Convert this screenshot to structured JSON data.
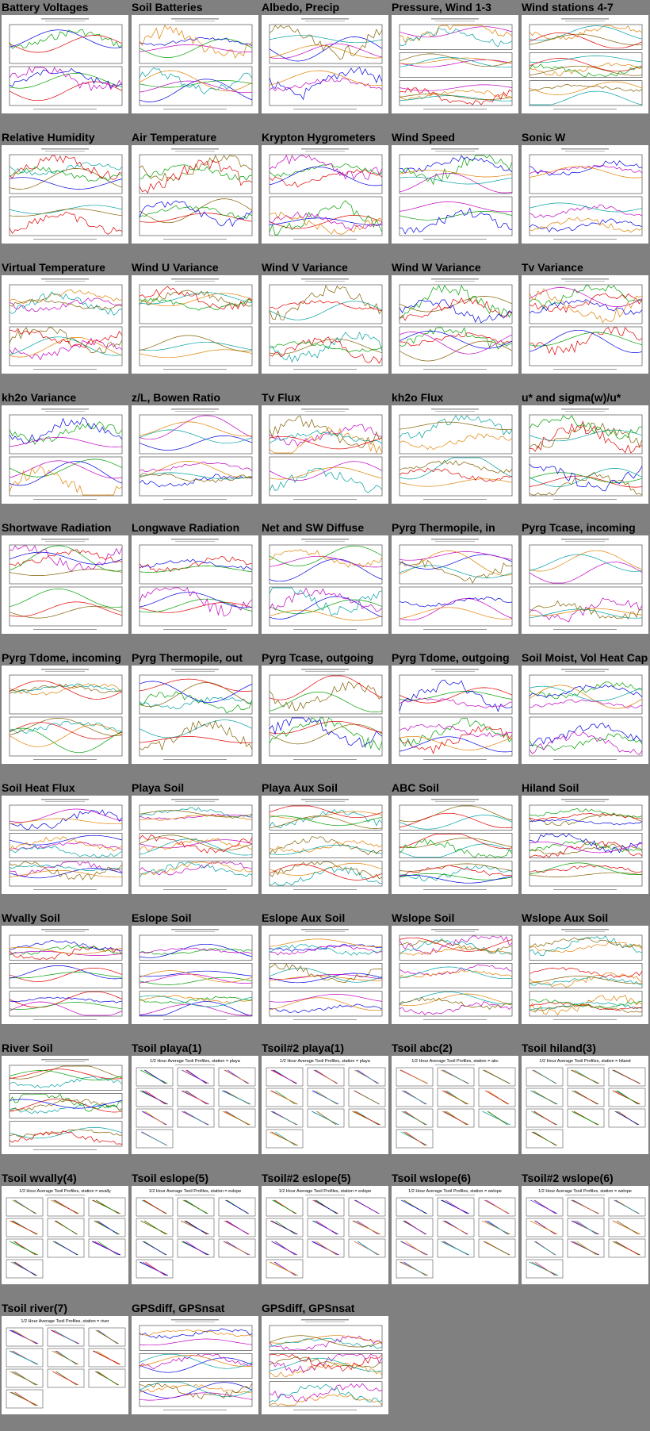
{
  "page": {
    "background": "#808080"
  },
  "plots": [
    {
      "title": "Battery Voltages",
      "kind": "ts",
      "panels": 2
    },
    {
      "title": "Soil Batteries",
      "kind": "ts",
      "panels": 2
    },
    {
      "title": "Albedo, Precip",
      "kind": "ts",
      "panels": 2
    },
    {
      "title": "Pressure, Wind 1-3",
      "kind": "ts",
      "panels": 3
    },
    {
      "title": "Wind stations 4-7",
      "kind": "ts",
      "panels": 3
    },
    {
      "title": "Relative Humidity",
      "kind": "ts",
      "panels": 2
    },
    {
      "title": "Air Temperature",
      "kind": "ts",
      "panels": 2
    },
    {
      "title": "Krypton Hygrometers",
      "kind": "ts",
      "panels": 2
    },
    {
      "title": "Wind Speed",
      "kind": "ts",
      "panels": 2
    },
    {
      "title": "Sonic W",
      "kind": "ts",
      "panels": 2
    },
    {
      "title": "Virtual Temperature",
      "kind": "ts",
      "panels": 2
    },
    {
      "title": "Wind U Variance",
      "kind": "ts",
      "panels": 2
    },
    {
      "title": "Wind V Variance",
      "kind": "ts",
      "panels": 2
    },
    {
      "title": "Wind W Variance",
      "kind": "ts",
      "panels": 2
    },
    {
      "title": "Tv Variance",
      "kind": "ts",
      "panels": 2
    },
    {
      "title": "kh2o Variance",
      "kind": "ts",
      "panels": 2
    },
    {
      "title": "z/L, Bowen Ratio",
      "kind": "ts",
      "panels": 2
    },
    {
      "title": "Tv Flux",
      "kind": "ts",
      "panels": 2
    },
    {
      "title": "kh2o Flux",
      "kind": "ts",
      "panels": 2
    },
    {
      "title": "u* and sigma(w)/u*",
      "kind": "ts",
      "panels": 2
    },
    {
      "title": "Shortwave Radiation",
      "kind": "ts",
      "panels": 2
    },
    {
      "title": "Longwave Radiation",
      "kind": "ts",
      "panels": 2
    },
    {
      "title": "Net and SW Diffuse",
      "kind": "ts",
      "panels": 2
    },
    {
      "title": "Pyrg Thermopile, in",
      "kind": "ts",
      "panels": 2
    },
    {
      "title": "Pyrg Tcase, incoming",
      "kind": "ts",
      "panels": 2
    },
    {
      "title": "Pyrg Tdome, incoming",
      "kind": "ts",
      "panels": 2
    },
    {
      "title": "Pyrg Thermopile, out",
      "kind": "ts",
      "panels": 2
    },
    {
      "title": "Pyrg Tcase, outgoing",
      "kind": "ts",
      "panels": 2
    },
    {
      "title": "Pyrg Tdome, outgoing",
      "kind": "ts",
      "panels": 2
    },
    {
      "title": "Soil Moist, Vol Heat Cap",
      "kind": "ts",
      "panels": 2
    },
    {
      "title": "Soil Heat Flux",
      "kind": "ts",
      "panels": 3
    },
    {
      "title": "Playa Soil",
      "kind": "ts",
      "panels": 3
    },
    {
      "title": "Playa Aux Soil",
      "kind": "ts",
      "panels": 3
    },
    {
      "title": "ABC Soil",
      "kind": "ts",
      "panels": 3
    },
    {
      "title": "Hiland Soil",
      "kind": "ts",
      "panels": 3
    },
    {
      "title": "Wvally Soil",
      "kind": "ts",
      "panels": 3
    },
    {
      "title": "Eslope Soil",
      "kind": "ts",
      "panels": 3
    },
    {
      "title": "Eslope Aux Soil",
      "kind": "ts",
      "panels": 3
    },
    {
      "title": "Wslope Soil",
      "kind": "ts",
      "panels": 3
    },
    {
      "title": "Wslope Aux Soil",
      "kind": "ts",
      "panels": 3
    },
    {
      "title": "River Soil",
      "kind": "ts",
      "panels": 3
    },
    {
      "title": "Tsoil playa(1)",
      "kind": "prof",
      "heading": "1/2 Hour Average Tsoil Profiles, station = playa"
    },
    {
      "title": "Tsoil#2 playa(1)",
      "kind": "prof",
      "heading": "1/2 Hour Average Tsoil Profiles, station = playa"
    },
    {
      "title": "Tsoil abc(2)",
      "kind": "prof",
      "heading": "1/2 Hour Average Tsoil Profiles, station = abc"
    },
    {
      "title": "Tsoil hiland(3)",
      "kind": "prof",
      "heading": "1/2 Hour Average Tsoil Profiles, station = hiland"
    },
    {
      "title": "Tsoil wvally(4)",
      "kind": "prof",
      "heading": "1/2 Hour Average Tsoil Profiles, station = wvally"
    },
    {
      "title": "Tsoil eslope(5)",
      "kind": "prof",
      "heading": "1/2 Hour Average Tsoil Profiles, station = eslope"
    },
    {
      "title": "Tsoil#2 eslope(5)",
      "kind": "prof",
      "heading": "1/2 Hour Average Tsoil Profiles, station = eslope"
    },
    {
      "title": "Tsoil wslope(6)",
      "kind": "prof",
      "heading": "1/2 Hour Average Tsoil Profiles, station = wslope"
    },
    {
      "title": "Tsoil#2 wslope(6)",
      "kind": "prof",
      "heading": "1/2 Hour Average Tsoil Profiles, station = wslope"
    },
    {
      "title": "Tsoil river(7)",
      "kind": "prof",
      "heading": "1/2 Hour Average Tsoil Profiles, station = river"
    },
    {
      "title": "GPSdiff, GPSnsat",
      "kind": "ts",
      "panels": 3
    },
    {
      "title": "GPSdiff, GPSnsat",
      "kind": "ts",
      "panels": 3
    }
  ],
  "line_colors": [
    "#e00000",
    "#00a000",
    "#0000e0",
    "#c000c0",
    "#e08000",
    "#00a0a0",
    "#806000"
  ]
}
